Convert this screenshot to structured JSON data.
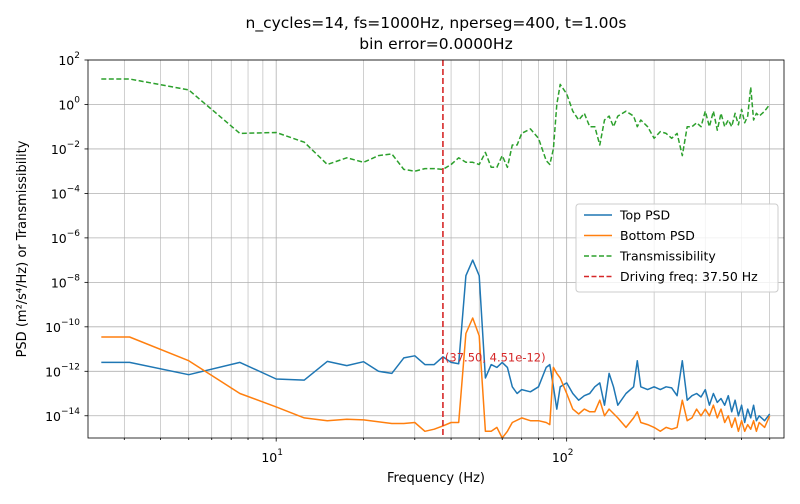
{
  "chart_data": {
    "type": "line",
    "title_line1": "n_cycles=14, fs=1000Hz, nperseg=400, t=1.00s",
    "title_line2": "bin error=0.0000Hz",
    "xlabel": "Frequency (Hz)",
    "ylabel": "PSD (m²/s⁴/Hz) or Transmissibility",
    "xscale": "log",
    "yscale": "log",
    "xlim": [
      2.25,
      560
    ],
    "ylim": [
      1e-15,
      100
    ],
    "grid": true,
    "grid_minor_x": true,
    "legend_location": "center right",
    "x_ticks": [
      {
        "value": 10,
        "base": "10",
        "exp": "1"
      },
      {
        "value": 100,
        "base": "10",
        "exp": "2"
      }
    ],
    "y_ticks": [
      {
        "value": 1e-14,
        "base": "10",
        "exp": "−14"
      },
      {
        "value": 1e-12,
        "base": "10",
        "exp": "−12"
      },
      {
        "value": 1e-10,
        "base": "10",
        "exp": "−10"
      },
      {
        "value": 1e-08,
        "base": "10",
        "exp": "−8"
      },
      {
        "value": 1e-06,
        "base": "10",
        "exp": "−6"
      },
      {
        "value": 0.0001,
        "base": "10",
        "exp": "−4"
      },
      {
        "value": 0.01,
        "base": "10",
        "exp": "−2"
      },
      {
        "value": 1,
        "base": "10",
        "exp": "0"
      },
      {
        "value": 100,
        "base": "10",
        "exp": "2"
      }
    ],
    "series": [
      {
        "name": "Top PSD",
        "color": "#1f77b4",
        "style": "solid",
        "points": [
          [
            2.5,
            2.5e-12
          ],
          [
            3.13,
            2.5e-12
          ],
          [
            5,
            7e-13
          ],
          [
            7.5,
            2.5e-12
          ],
          [
            10,
            4.5e-13
          ],
          [
            12.5,
            4e-13
          ],
          [
            15,
            2.8e-12
          ],
          [
            17.5,
            1.8e-12
          ],
          [
            20,
            2.7e-12
          ],
          [
            22.5,
            1e-12
          ],
          [
            25,
            8e-13
          ],
          [
            27.5,
            4e-12
          ],
          [
            30,
            5e-12
          ],
          [
            32.5,
            2e-12
          ],
          [
            35,
            2e-12
          ],
          [
            37.5,
            4.5e-12
          ],
          [
            40,
            2.5e-12
          ],
          [
            42.5,
            2.2e-12
          ],
          [
            45,
            2e-08
          ],
          [
            47.5,
            1e-07
          ],
          [
            50,
            2e-08
          ],
          [
            52.5,
            5e-13
          ],
          [
            55,
            2e-12
          ],
          [
            57.5,
            1.5e-12
          ],
          [
            60,
            2.5e-12
          ],
          [
            62.5,
            1.5e-12
          ],
          [
            65,
            2e-13
          ],
          [
            67.5,
            1e-13
          ],
          [
            70,
            1.5e-13
          ],
          [
            75,
            1.2e-13
          ],
          [
            80,
            2e-13
          ],
          [
            85,
            1.5e-12
          ],
          [
            87.5,
            2e-12
          ],
          [
            90,
            2e-13
          ],
          [
            92.5,
            2e-14
          ],
          [
            95,
            2e-13
          ],
          [
            100,
            3e-13
          ],
          [
            105,
            1e-13
          ],
          [
            110,
            5e-14
          ],
          [
            115,
            8e-14
          ],
          [
            120,
            1e-13
          ],
          [
            125,
            2e-13
          ],
          [
            130,
            3e-13
          ],
          [
            135,
            3e-14
          ],
          [
            140,
            8e-13
          ],
          [
            145,
            2e-13
          ],
          [
            150,
            3e-14
          ],
          [
            160,
            1e-13
          ],
          [
            170,
            2e-13
          ],
          [
            175,
            3e-12
          ],
          [
            180,
            2e-13
          ],
          [
            190,
            1.5e-13
          ],
          [
            200,
            2e-13
          ],
          [
            210,
            1.5e-13
          ],
          [
            220,
            2e-13
          ],
          [
            230,
            1.8e-13
          ],
          [
            240,
            8e-14
          ],
          [
            250,
            3e-12
          ],
          [
            260,
            5e-14
          ],
          [
            270,
            8e-14
          ],
          [
            280,
            1e-13
          ],
          [
            290,
            7e-14
          ],
          [
            300,
            1.5e-13
          ],
          [
            310,
            3e-14
          ],
          [
            320,
            1e-13
          ],
          [
            330,
            4e-14
          ],
          [
            340,
            6e-14
          ],
          [
            350,
            3e-14
          ],
          [
            360,
            8e-14
          ],
          [
            370,
            1.5e-14
          ],
          [
            380,
            5e-14
          ],
          [
            390,
            1e-14
          ],
          [
            400,
            3e-14
          ],
          [
            410,
            5e-15
          ],
          [
            420,
            2e-14
          ],
          [
            430,
            8e-15
          ],
          [
            440,
            3e-14
          ],
          [
            450,
            6e-15
          ],
          [
            460,
            1e-14
          ],
          [
            480,
            6e-15
          ],
          [
            500,
            1.2e-14
          ]
        ]
      },
      {
        "name": "Bottom PSD",
        "color": "#ff7f0e",
        "style": "solid",
        "points": [
          [
            2.5,
            3.5e-11
          ],
          [
            3.13,
            3.5e-11
          ],
          [
            5,
            3e-12
          ],
          [
            7.5,
            1e-13
          ],
          [
            10,
            2.5e-14
          ],
          [
            12.5,
            8e-15
          ],
          [
            15,
            6e-15
          ],
          [
            17.5,
            7e-15
          ],
          [
            20,
            6.5e-15
          ],
          [
            25,
            4.5e-15
          ],
          [
            27.5,
            4.5e-15
          ],
          [
            30,
            5e-15
          ],
          [
            32.5,
            2e-15
          ],
          [
            35,
            2.5e-15
          ],
          [
            37.5,
            3.5e-15
          ],
          [
            40,
            5e-15
          ],
          [
            42.5,
            5e-15
          ],
          [
            45,
            5e-11
          ],
          [
            47.5,
            2.5e-10
          ],
          [
            50,
            4e-11
          ],
          [
            52.5,
            2e-15
          ],
          [
            55,
            2e-15
          ],
          [
            57.5,
            3e-15
          ],
          [
            60,
            1e-15
          ],
          [
            62.5,
            2e-15
          ],
          [
            65,
            5e-15
          ],
          [
            70,
            8e-15
          ],
          [
            75,
            6e-15
          ],
          [
            80,
            6e-15
          ],
          [
            85,
            5e-15
          ],
          [
            87.5,
            4e-15
          ],
          [
            90,
            1.5e-12
          ],
          [
            92.5,
            8e-13
          ],
          [
            95,
            5e-13
          ],
          [
            100,
            1e-13
          ],
          [
            105,
            2e-14
          ],
          [
            110,
            1.2e-14
          ],
          [
            115,
            2e-14
          ],
          [
            120,
            1.5e-14
          ],
          [
            125,
            1.5e-14
          ],
          [
            130,
            5e-14
          ],
          [
            135,
            1e-14
          ],
          [
            140,
            2e-14
          ],
          [
            150,
            8e-15
          ],
          [
            160,
            3e-15
          ],
          [
            170,
            8e-15
          ],
          [
            175,
            1.5e-14
          ],
          [
            180,
            5e-15
          ],
          [
            190,
            4e-15
          ],
          [
            200,
            3e-15
          ],
          [
            210,
            2e-15
          ],
          [
            220,
            3e-15
          ],
          [
            230,
            2.5e-15
          ],
          [
            240,
            3e-15
          ],
          [
            250,
            5e-14
          ],
          [
            260,
            6e-15
          ],
          [
            270,
            8e-15
          ],
          [
            280,
            2e-14
          ],
          [
            290,
            1e-14
          ],
          [
            300,
            2e-14
          ],
          [
            310,
            1e-14
          ],
          [
            320,
            3e-14
          ],
          [
            330,
            8e-15
          ],
          [
            340,
            2e-14
          ],
          [
            350,
            5e-15
          ],
          [
            360,
            1e-14
          ],
          [
            370,
            3e-15
          ],
          [
            380,
            8e-15
          ],
          [
            390,
            2e-15
          ],
          [
            400,
            6e-15
          ],
          [
            410,
            2e-15
          ],
          [
            420,
            4e-15
          ],
          [
            430,
            2.5e-15
          ],
          [
            440,
            6e-15
          ],
          [
            450,
            2e-15
          ],
          [
            460,
            5e-15
          ],
          [
            480,
            3e-15
          ],
          [
            500,
            1e-14
          ]
        ]
      },
      {
        "name": "Transmissibility",
        "color": "#2ca02c",
        "style": "dashed",
        "points": [
          [
            2.5,
            14
          ],
          [
            3.13,
            14
          ],
          [
            5,
            4.5
          ],
          [
            7.5,
            0.05
          ],
          [
            10,
            0.055
          ],
          [
            12.5,
            0.02
          ],
          [
            15,
            0.002
          ],
          [
            17.5,
            0.004
          ],
          [
            20,
            0.0025
          ],
          [
            22.5,
            0.005
          ],
          [
            25,
            0.006
          ],
          [
            27.5,
            0.0012
          ],
          [
            30,
            0.001
          ],
          [
            32.5,
            0.0013
          ],
          [
            35,
            0.0013
          ],
          [
            37.5,
            0.0012
          ],
          [
            40,
            0.002
          ],
          [
            42.5,
            0.004
          ],
          [
            45,
            0.0025
          ],
          [
            47.5,
            0.0025
          ],
          [
            50,
            0.002
          ],
          [
            52.5,
            0.007
          ],
          [
            55,
            0.0015
          ],
          [
            57.5,
            0.0015
          ],
          [
            60,
            0.005
          ],
          [
            62.5,
            0.0015
          ],
          [
            65,
            0.015
          ],
          [
            67.5,
            0.015
          ],
          [
            70,
            0.05
          ],
          [
            75,
            0.08
          ],
          [
            80,
            0.03
          ],
          [
            85,
            0.003
          ],
          [
            87.5,
            0.002
          ],
          [
            90,
            0.01
          ],
          [
            92.5,
            1
          ],
          [
            95,
            8
          ],
          [
            100,
            3
          ],
          [
            105,
            0.5
          ],
          [
            110,
            0.2
          ],
          [
            115,
            0.4
          ],
          [
            120,
            0.1
          ],
          [
            125,
            0.1
          ],
          [
            130,
            0.015
          ],
          [
            135,
            0.2
          ],
          [
            140,
            0.3
          ],
          [
            145,
            0.1
          ],
          [
            150,
            0.3
          ],
          [
            160,
            0.5
          ],
          [
            170,
            0.3
          ],
          [
            175,
            0.1
          ],
          [
            180,
            0.2
          ],
          [
            190,
            0.1
          ],
          [
            200,
            0.03
          ],
          [
            210,
            0.06
          ],
          [
            220,
            0.05
          ],
          [
            230,
            0.03
          ],
          [
            240,
            0.05
          ],
          [
            250,
            0.005
          ],
          [
            260,
            0.1
          ],
          [
            270,
            0.1
          ],
          [
            280,
            0.15
          ],
          [
            290,
            0.1
          ],
          [
            300,
            0.5
          ],
          [
            310,
            0.1
          ],
          [
            320,
            0.5
          ],
          [
            330,
            0.07
          ],
          [
            340,
            0.4
          ],
          [
            350,
            0.1
          ],
          [
            360,
            0.2
          ],
          [
            370,
            0.1
          ],
          [
            380,
            0.4
          ],
          [
            390,
            0.12
          ],
          [
            400,
            0.6
          ],
          [
            410,
            0.15
          ],
          [
            420,
            0.3
          ],
          [
            430,
            6
          ],
          [
            440,
            0.2
          ],
          [
            450,
            0.4
          ],
          [
            460,
            0.3
          ],
          [
            480,
            0.5
          ],
          [
            500,
            1
          ]
        ]
      },
      {
        "name": "Driving freq: 37.50 Hz",
        "color": "#d62728",
        "style": "dashed",
        "vline_x": 37.5
      }
    ],
    "annotations": [
      {
        "text": "(37.50, 4.51e-12)",
        "x": 37.5,
        "y": 4.51e-12,
        "color": "#d62728"
      }
    ]
  }
}
